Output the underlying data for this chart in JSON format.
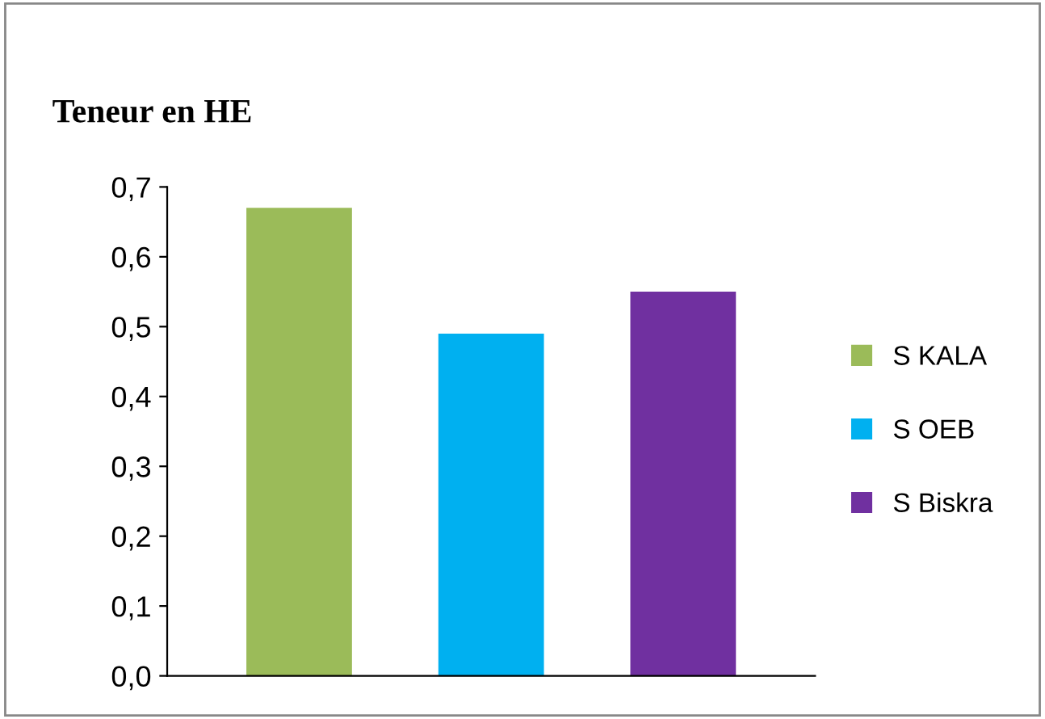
{
  "chart_data": {
    "type": "bar",
    "title": "Teneur en HE",
    "categories": [
      null
    ],
    "series": [
      {
        "name": "S KALA",
        "color": "#9bbb59",
        "values": [
          0.67
        ]
      },
      {
        "name": "S OEB",
        "color": "#00b0f0",
        "values": [
          0.49
        ]
      },
      {
        "name": "S Biskra",
        "color": "#7030a0",
        "values": [
          0.55
        ]
      }
    ],
    "ylim": [
      0,
      0.7
    ],
    "yticks": [
      {
        "value": 0,
        "label": "0,0"
      },
      {
        "value": 0.1,
        "label": "0,1"
      },
      {
        "value": 0.2,
        "label": "0,2"
      },
      {
        "value": 0.3,
        "label": "0,3"
      },
      {
        "value": 0.4,
        "label": "0,4"
      },
      {
        "value": 0.5,
        "label": "0,5"
      },
      {
        "value": 0.6,
        "label": "0,6"
      },
      {
        "value": 0.7,
        "label": "0,7"
      }
    ],
    "grid": false,
    "legend": "right"
  }
}
